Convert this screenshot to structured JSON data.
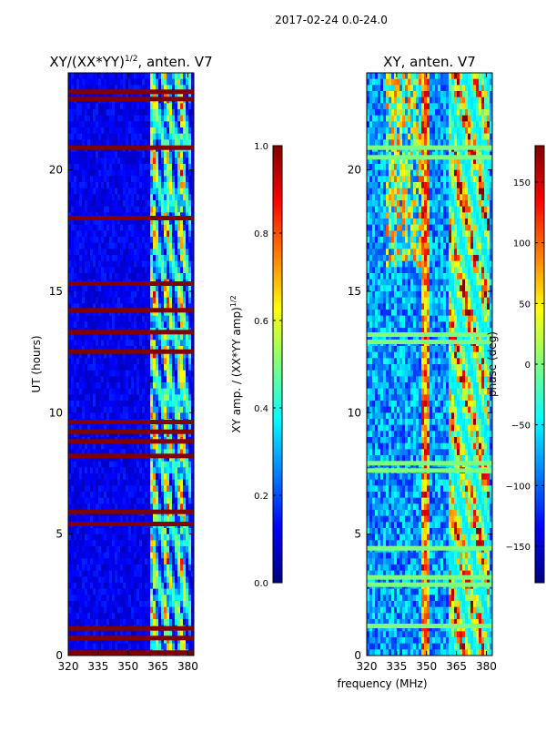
{
  "suptitle": "2017-02-24 0.0-24.0",
  "chart_data": [
    {
      "type": "heatmap",
      "title_base": "XY/(XX*YY)",
      "title_exp": "1/2",
      "title_suffix": ", anten. V7",
      "xlim": [
        320,
        383
      ],
      "ylim": [
        0,
        24
      ],
      "xticks": [
        320,
        335,
        350,
        365,
        380
      ],
      "yticks": [
        0,
        5,
        10,
        15,
        20
      ],
      "ylabel": "UT (hours)",
      "colorbar": {
        "label_base": "XY amp. / (XX*YY amp)",
        "label_exp": "1/2",
        "range": [
          0.0,
          1.0
        ],
        "ticks": [
          "0.0",
          "0.2",
          "0.4",
          "0.6",
          "0.8",
          "1.0"
        ]
      },
      "flagged_rows_ut": [
        0.1,
        0.7,
        1.1,
        5.4,
        5.9,
        8.2,
        8.8,
        9.2,
        9.6,
        12.5,
        13.3,
        14.2,
        15.3,
        18.0,
        20.9,
        22.9,
        23.2
      ]
    },
    {
      "type": "heatmap",
      "title": "XY, anten. V7",
      "xlim": [
        320,
        383
      ],
      "ylim": [
        0,
        24
      ],
      "xticks": [
        320,
        335,
        350,
        365,
        380
      ],
      "yticks": [
        0,
        5,
        10,
        15,
        20
      ],
      "colorbar": {
        "label": "phase (deg)",
        "range": [
          -180,
          180
        ],
        "ticks": [
          "−150",
          "−100",
          "−50",
          "0",
          "50",
          "100",
          "150"
        ]
      },
      "flagged_rows_ut": [
        1.2,
        2.9,
        3.2,
        4.4,
        7.6,
        7.9,
        12.9,
        13.2,
        20.5,
        20.9
      ]
    }
  ],
  "xlabel": "frequency (MHz)",
  "colormap": [
    "#00007f",
    "#0000ff",
    "#007fff",
    "#00ffff",
    "#7fff7f",
    "#ffff00",
    "#ff7f00",
    "#ff0000",
    "#7f0000"
  ]
}
